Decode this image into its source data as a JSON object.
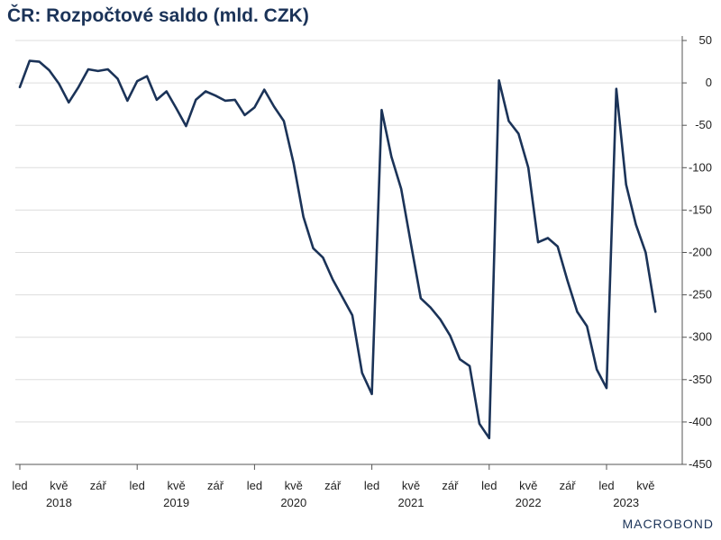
{
  "title": "ČR: Rozpočtové saldo (mld. CZK)",
  "logo": "MACROBOND",
  "colors": {
    "line": "#1b3358",
    "grid": "#dddddd",
    "axis": "#555555",
    "text": "#222222"
  },
  "chart_data": {
    "type": "line",
    "title": "ČR: Rozpočtové saldo (mld. CZK)",
    "xlabel": "",
    "ylabel": "",
    "ylim": [
      -450,
      50
    ],
    "yticks": [
      50,
      0,
      -50,
      -100,
      -150,
      -200,
      -250,
      -300,
      -350,
      -400,
      -450
    ],
    "y_axis_side": "right",
    "grid": true,
    "legend": "none",
    "month_tick_labels": [
      "led",
      "kvě",
      "zář",
      "led",
      "kvě",
      "zář",
      "led",
      "kvě",
      "zář",
      "led",
      "kvě",
      "zář",
      "led",
      "kvě",
      "zář",
      "led",
      "kvě"
    ],
    "year_labels": [
      "2018",
      "2019",
      "2020",
      "2021",
      "2022",
      "2023"
    ],
    "series": [
      {
        "x": [
          "2018-01",
          "2018-02",
          "2018-03",
          "2018-04",
          "2018-05",
          "2018-06",
          "2018-07",
          "2018-08",
          "2018-09",
          "2018-10",
          "2018-11",
          "2018-12",
          "2019-01",
          "2019-02",
          "2019-03",
          "2019-04",
          "2019-05",
          "2019-06",
          "2019-07",
          "2019-08",
          "2019-09",
          "2019-10",
          "2019-11",
          "2019-12",
          "2020-01",
          "2020-02",
          "2020-03",
          "2020-04",
          "2020-05",
          "2020-06",
          "2020-07",
          "2020-08",
          "2020-09",
          "2020-10",
          "2020-11",
          "2020-12",
          "2021-01",
          "2021-02",
          "2021-03",
          "2021-04",
          "2021-05",
          "2021-06",
          "2021-07",
          "2021-08",
          "2021-09",
          "2021-10",
          "2021-11",
          "2021-12",
          "2022-01",
          "2022-02",
          "2022-03",
          "2022-04",
          "2022-05",
          "2022-06",
          "2022-07",
          "2022-08",
          "2022-09",
          "2022-10",
          "2022-11",
          "2022-12",
          "2023-01",
          "2023-02",
          "2023-03",
          "2023-04",
          "2023-05",
          "2023-06"
        ],
        "values": [
          -5,
          26,
          25,
          15,
          -1,
          -23,
          -5,
          16,
          14,
          16,
          5,
          -21,
          2,
          8,
          -20,
          -10,
          -30,
          -51,
          -20,
          -10,
          -15,
          -21,
          -20,
          -38,
          -29,
          -8,
          -28,
          -45,
          -95,
          -158,
          -195,
          -206,
          -232,
          -253,
          -274,
          -342,
          -367,
          -32,
          -87,
          -125,
          -190,
          -254,
          -265,
          -279,
          -298,
          -326,
          -334,
          -402,
          -419,
          3,
          -45,
          -60,
          -100,
          -188,
          -183,
          -193,
          -233,
          -270,
          -287,
          -338,
          -360,
          -7,
          -120,
          -167,
          -200,
          -270
        ]
      }
    ]
  }
}
